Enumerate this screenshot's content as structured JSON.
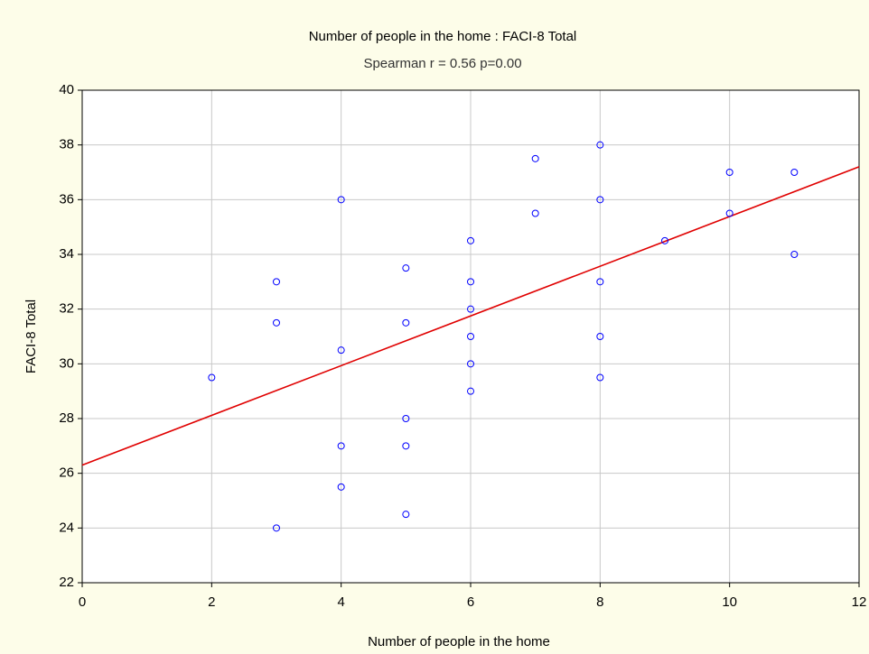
{
  "chart_data": {
    "type": "scatter",
    "title": "Number of people in the home : FACI-8 Total",
    "subtitle": "Spearman r = 0.56 p=0.00",
    "x_label": "Number of people in the home",
    "y_label": "FACI-8 Total",
    "x": [
      2,
      3,
      3,
      3,
      4,
      4,
      4,
      4,
      5,
      5,
      5,
      5,
      5,
      6,
      6,
      6,
      6,
      6,
      6,
      7,
      7,
      8,
      8,
      8,
      8,
      8,
      9,
      10,
      10,
      11,
      11
    ],
    "y": [
      29.5,
      33,
      31.5,
      24,
      36,
      30.5,
      27,
      25.5,
      33.5,
      31.5,
      28,
      27,
      24.5,
      34.5,
      33,
      32,
      31,
      30,
      29,
      37.5,
      35.5,
      38,
      36,
      33,
      31,
      29.5,
      34.5,
      37,
      35.5,
      37,
      34
    ],
    "color": "#0000ff",
    "fit_line": {
      "x": [
        0,
        12
      ],
      "y": [
        26.3,
        37.2
      ],
      "color": "#e00000"
    },
    "xlim": [
      0,
      12
    ],
    "xticks": [
      0,
      2,
      4,
      6,
      8,
      10,
      12
    ],
    "ylim": [
      22,
      40
    ],
    "yticks": [
      22,
      24,
      26,
      28,
      30,
      32,
      34,
      36,
      38,
      40
    ],
    "grid": true
  }
}
